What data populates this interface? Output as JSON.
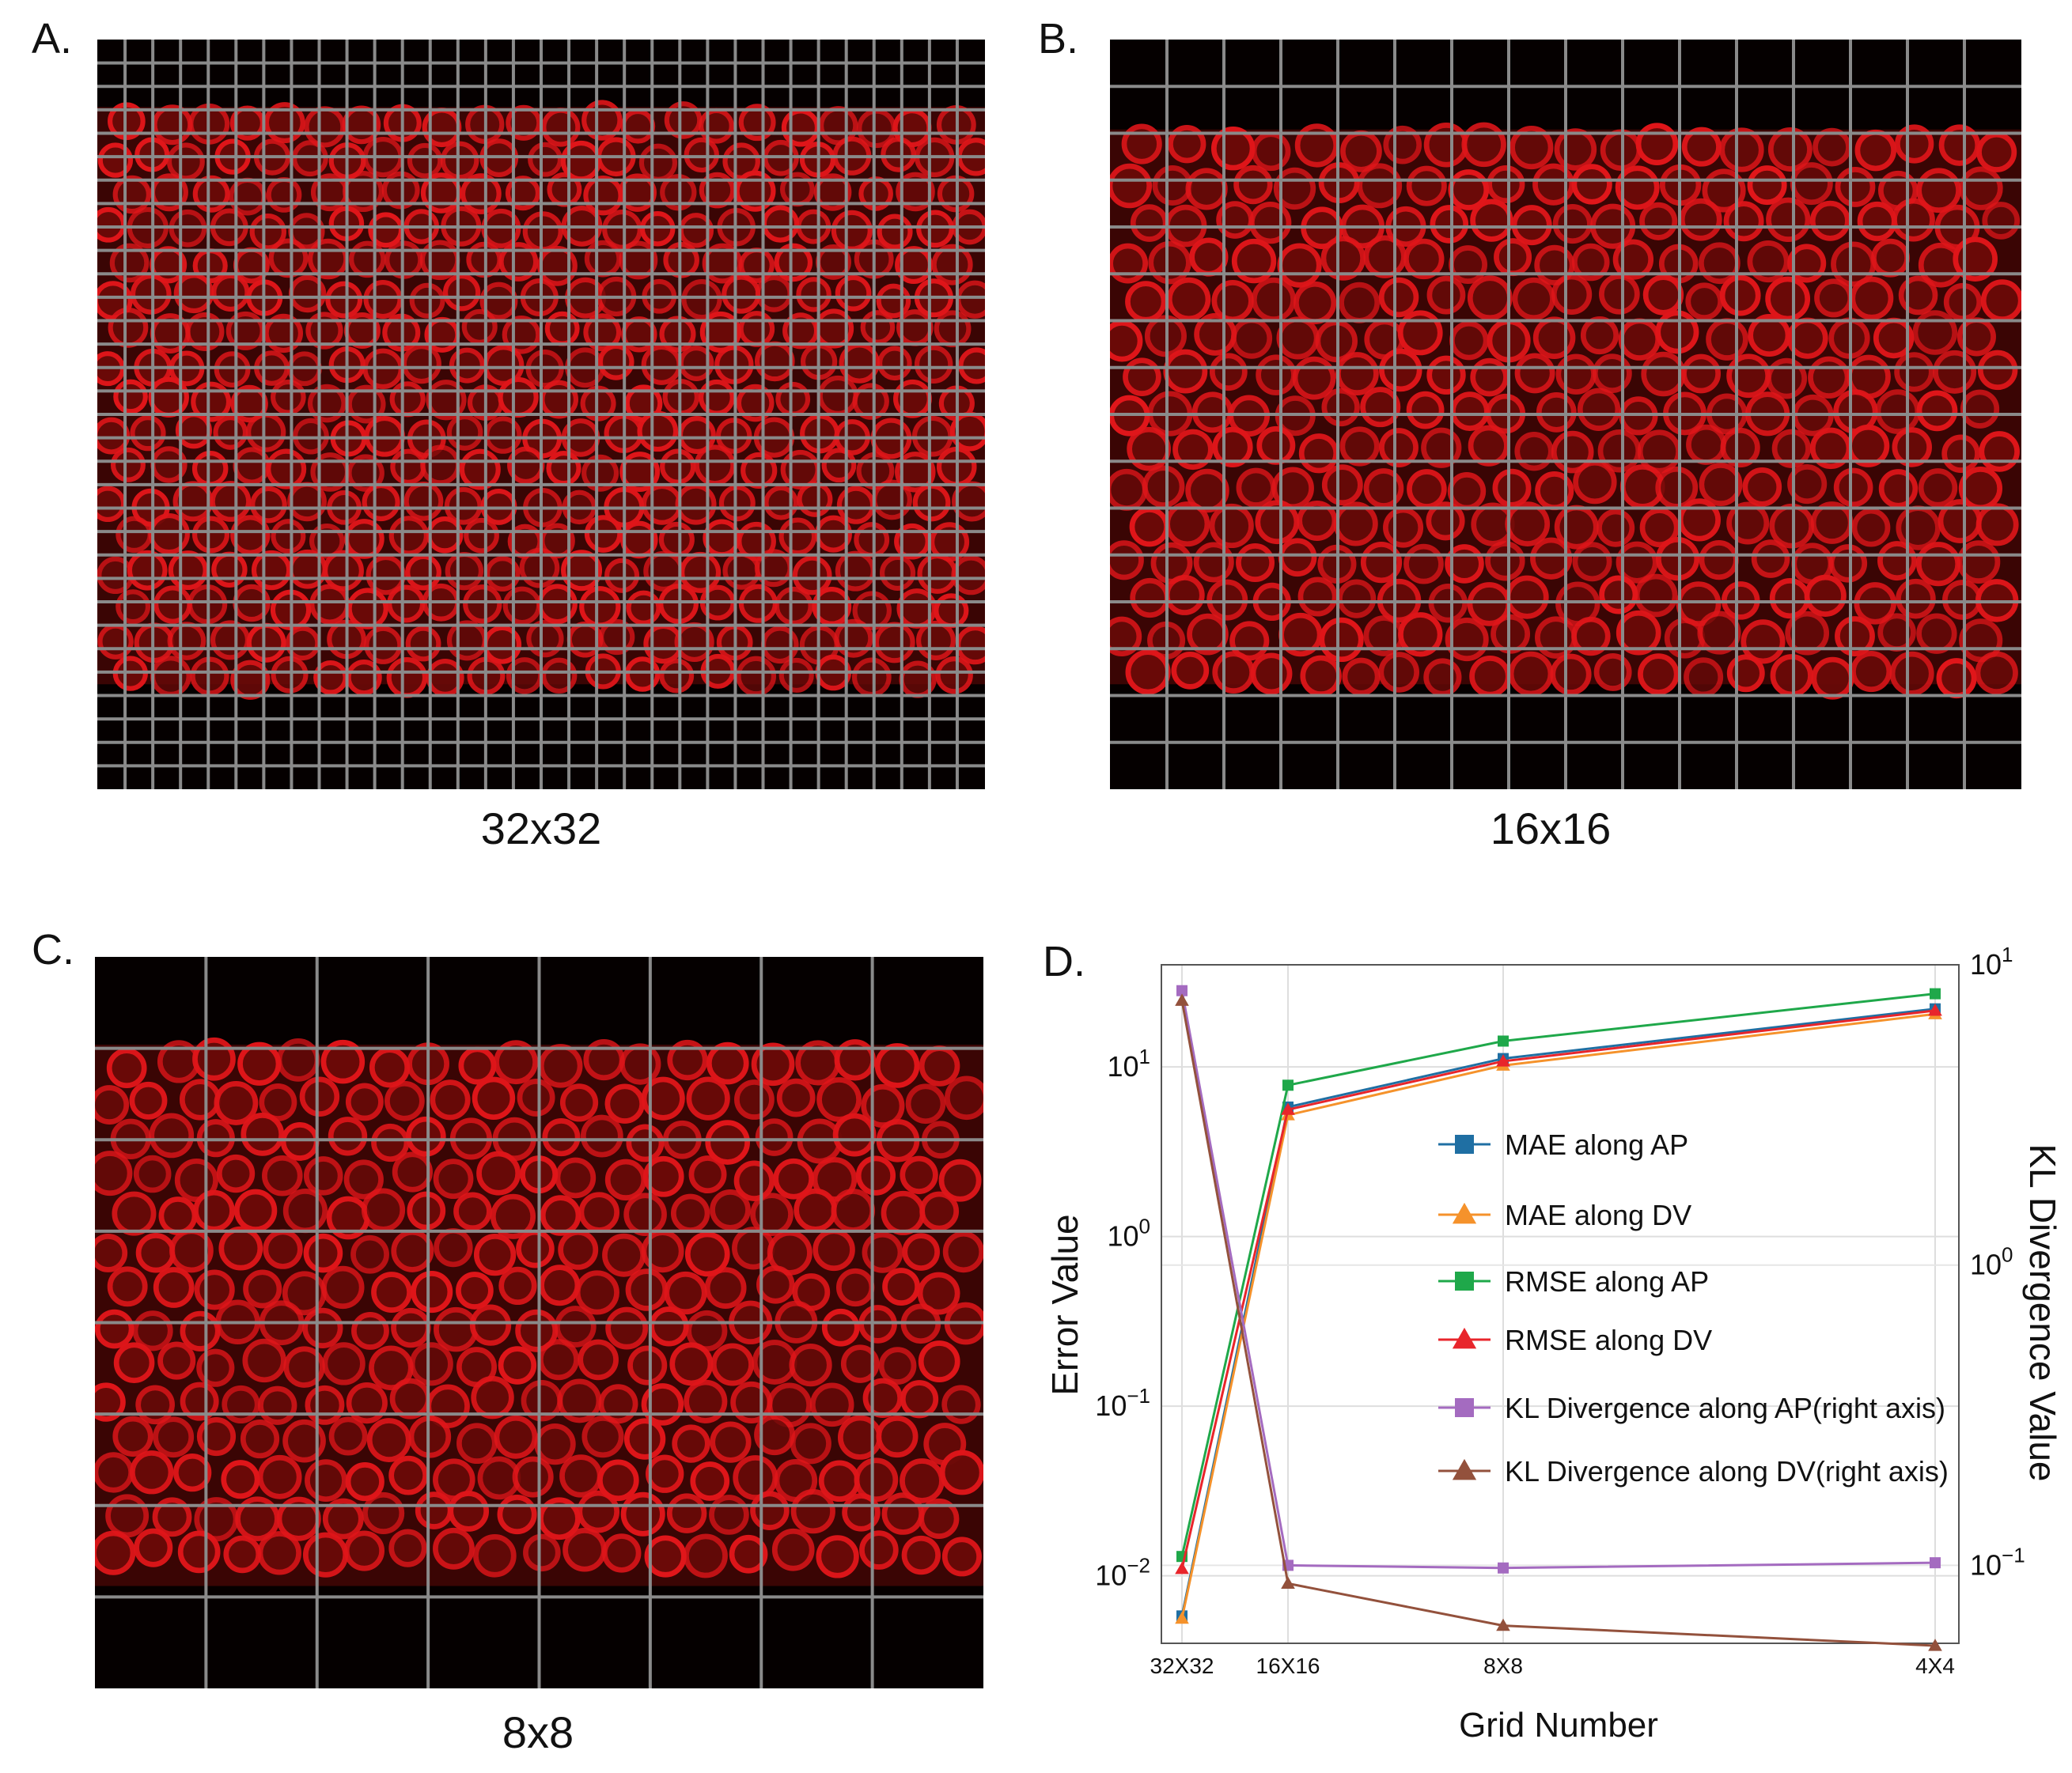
{
  "panels": {
    "a": {
      "letter": "A.",
      "caption": "32x32",
      "grid": 32
    },
    "b": {
      "letter": "B.",
      "caption": "16x16",
      "grid": 16
    },
    "c": {
      "letter": "C.",
      "caption": "8x8",
      "grid": 8
    },
    "d": {
      "letter": "D."
    }
  },
  "colors": {
    "cell": "#e0161a",
    "grid": "#8a8a8a",
    "background": "#050000"
  },
  "chart_data": {
    "type": "line",
    "categories": [
      "32X32",
      "16X16",
      "8X8",
      "4X4"
    ],
    "xlabel": "Grid Number",
    "ylabel": "Error Value",
    "y2label": "KL Divergence Value",
    "yscale": "log",
    "ylim": [
      0.004,
      40
    ],
    "y2lim": [
      0.055,
      10
    ],
    "yticks": [
      {
        "value": 0.01,
        "base": "10",
        "exp": "−2"
      },
      {
        "value": 0.1,
        "base": "10",
        "exp": "−1"
      },
      {
        "value": 1,
        "base": "10",
        "exp": "0"
      },
      {
        "value": 10,
        "base": "10",
        "exp": "1"
      }
    ],
    "y2ticks": [
      {
        "value": 0.1,
        "base": "10",
        "exp": "−1"
      },
      {
        "value": 1,
        "base": "10",
        "exp": "0"
      },
      {
        "value": 10,
        "base": "10",
        "exp": "1"
      }
    ],
    "grid": true,
    "legend_position": "center-right",
    "series": [
      {
        "name": "MAE along AP",
        "axis": "left",
        "marker": "square",
        "color": "#1f6fa3",
        "values": [
          0.0058,
          5.8,
          11.2,
          22.0
        ]
      },
      {
        "name": "MAE along DV",
        "axis": "left",
        "marker": "triangle",
        "color": "#f5922b",
        "values": [
          0.0056,
          5.2,
          10.2,
          20.5
        ]
      },
      {
        "name": "RMSE along AP",
        "axis": "left",
        "marker": "square",
        "color": "#1fa84a",
        "values": [
          0.013,
          7.8,
          14.2,
          27.0
        ]
      },
      {
        "name": "RMSE along DV",
        "axis": "left",
        "marker": "triangle",
        "color": "#e8252b",
        "values": [
          0.011,
          5.6,
          10.8,
          21.5
        ]
      },
      {
        "name": "KL Divergence along AP(right axis)",
        "axis": "right",
        "marker": "square",
        "color": "#a46bc0",
        "values": [
          8.2,
          0.1,
          0.098,
          0.102
        ]
      },
      {
        "name": "KL Divergence along DV(right axis)",
        "axis": "right",
        "marker": "triangle",
        "color": "#93513c",
        "values": [
          7.6,
          0.087,
          0.063,
          0.054
        ]
      }
    ]
  }
}
